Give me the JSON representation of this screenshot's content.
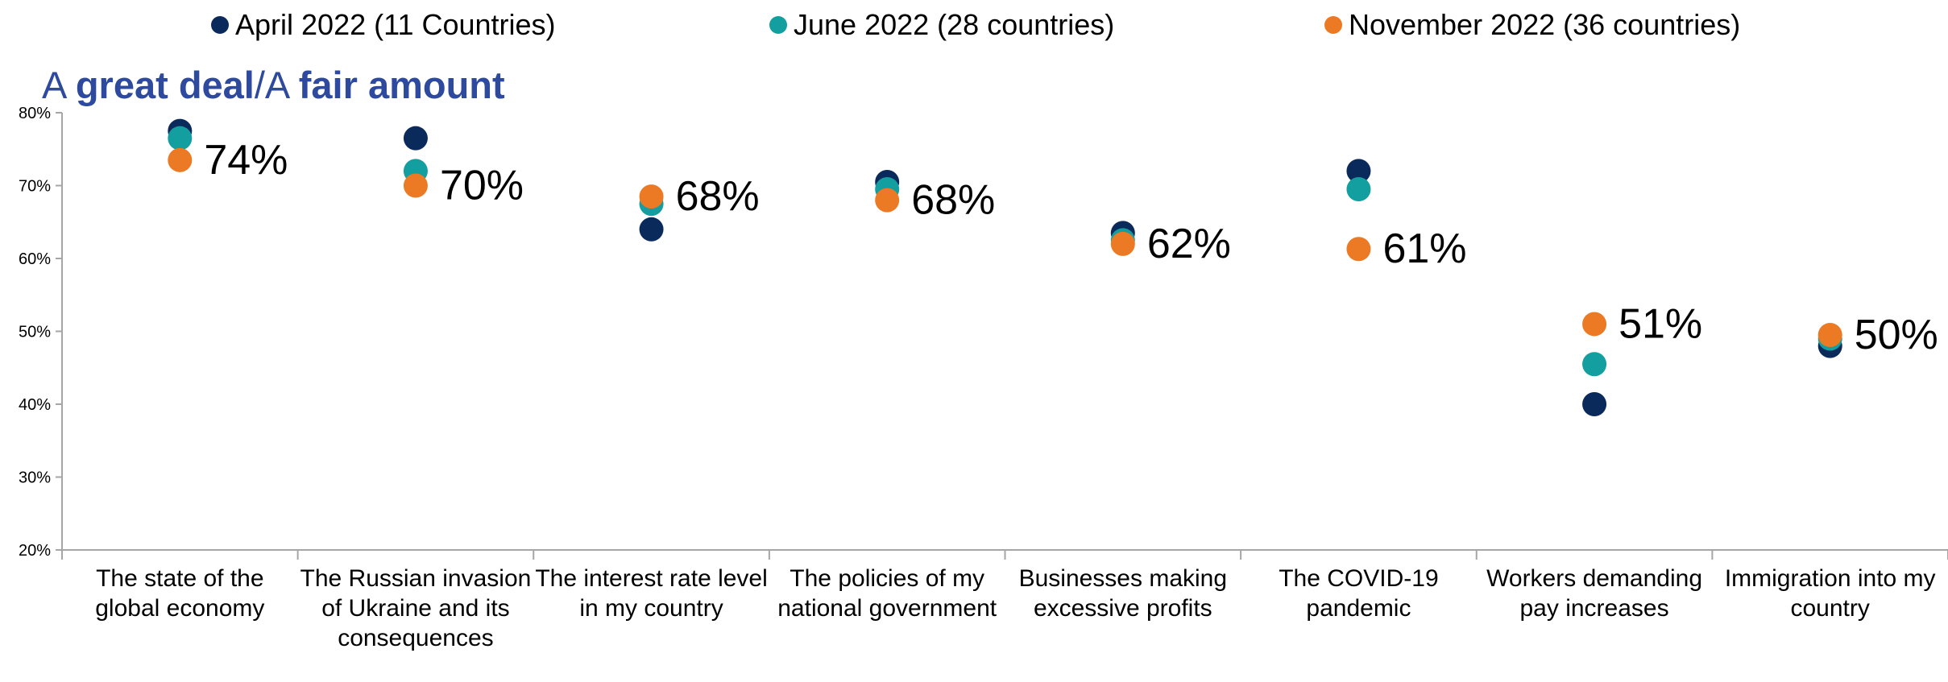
{
  "legend": {
    "items": [
      {
        "label": "April 2022 (11 Countries)",
        "color": "#0b2a5c"
      },
      {
        "label": "June 2022 (28 countries)",
        "color": "#139e9f"
      },
      {
        "label": "November 2022 (36 countries)",
        "color": "#ec7a24"
      }
    ]
  },
  "title": {
    "part1": "A ",
    "part2": "great deal",
    "part3": "/A ",
    "part4": "fair amount"
  },
  "chart_data": {
    "type": "scatter",
    "categories": [
      "The state of the global economy",
      "The Russian invasion of Ukraine and its consequences",
      "The interest rate level in my country",
      "The policies of my national government",
      "Businesses making excessive profits",
      "The COVID-19 pandemic",
      "Workers demanding pay increases",
      "Immigration into my country"
    ],
    "series": [
      {
        "name": "April 2022 (11 Countries)",
        "color": "#0b2a5c",
        "values": [
          77.5,
          76.5,
          64,
          70.5,
          63.5,
          72,
          40,
          48
        ]
      },
      {
        "name": "June 2022 (28 countries)",
        "color": "#139e9f",
        "values": [
          76.5,
          72,
          67.5,
          69.5,
          62.5,
          69.5,
          45.5,
          49
        ]
      },
      {
        "name": "November 2022 (36 countries)",
        "color": "#ec7a24",
        "values": [
          73.5,
          70,
          68.5,
          68,
          62,
          61.3,
          51,
          49.5
        ]
      }
    ],
    "data_labels": [
      "74%",
      "70%",
      "68%",
      "68%",
      "62%",
      "61%",
      "51%",
      "50%"
    ],
    "ylim": [
      20,
      80
    ],
    "yticks": [
      "20%",
      "30%",
      "40%",
      "50%",
      "60%",
      "70%",
      "80%"
    ],
    "ytick_values": [
      20,
      30,
      40,
      50,
      60,
      70,
      80
    ],
    "grid": false
  }
}
